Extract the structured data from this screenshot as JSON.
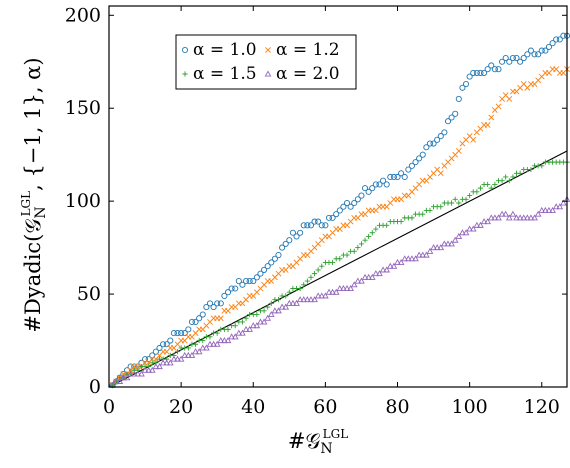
{
  "chart_data": {
    "type": "scatter",
    "xlabel": "#𝒢",
    "xlabel_sub": "N",
    "xlabel_sup": "LGL",
    "ylabel": "#Dyadic(𝒢",
    "ylabel_sub": "N",
    "ylabel_sup": "LGL",
    "ylabel_tail": ", {−1, 1}, α)",
    "xlim": [
      0,
      127
    ],
    "ylim": [
      0,
      205
    ],
    "xticks": [
      0,
      20,
      40,
      60,
      80,
      100,
      120
    ],
    "yticks": [
      0,
      50,
      100,
      150,
      200
    ],
    "x_tick_labels": [
      "0",
      "20",
      "40",
      "60",
      "80",
      "100",
      "120"
    ],
    "y_tick_labels": [
      "0",
      "50",
      "100",
      "150",
      "200"
    ],
    "legend_position": "top-left",
    "reference_line": {
      "x": [
        0,
        127
      ],
      "y": [
        0,
        127
      ]
    },
    "series": [
      {
        "name": "α = 1.0",
        "color": "#1f77b4",
        "marker": "circle",
        "x": [
          1,
          2,
          3,
          4,
          5,
          6,
          7,
          8,
          9,
          10,
          11,
          12,
          13,
          14,
          15,
          16,
          17,
          18,
          19,
          20,
          21,
          22,
          23,
          24,
          25,
          26,
          27,
          28,
          29,
          30,
          31,
          32,
          33,
          34,
          35,
          36,
          37,
          38,
          39,
          40,
          41,
          42,
          43,
          44,
          45,
          46,
          47,
          48,
          49,
          50,
          51,
          52,
          53,
          54,
          55,
          56,
          57,
          58,
          59,
          60,
          61,
          62,
          63,
          64,
          65,
          66,
          67,
          68,
          69,
          70,
          71,
          72,
          73,
          74,
          75,
          76,
          77,
          78,
          79,
          80,
          81,
          82,
          83,
          84,
          85,
          86,
          87,
          88,
          89,
          90,
          91,
          92,
          93,
          94,
          95,
          96,
          97,
          98,
          99,
          100,
          101,
          102,
          103,
          104,
          105,
          106,
          107,
          108,
          109,
          110,
          111,
          112,
          113,
          114,
          115,
          116,
          117,
          118,
          119,
          120,
          121,
          122,
          123,
          124,
          125,
          126,
          127
        ],
        "y": [
          1,
          3,
          5,
          7,
          9,
          11,
          11,
          11,
          13,
          15,
          15,
          17,
          19,
          21,
          23,
          23,
          25,
          29,
          29,
          29,
          29,
          31,
          35,
          35,
          37,
          39,
          43,
          45,
          43,
          45,
          45,
          49,
          51,
          53,
          53,
          57,
          55,
          57,
          57,
          57,
          59,
          61,
          63,
          65,
          67,
          69,
          71,
          75,
          77,
          79,
          83,
          81,
          83,
          87,
          87,
          87,
          89,
          89,
          87,
          87,
          91,
          91,
          93,
          95,
          97,
          99,
          97,
          99,
          101,
          103,
          107,
          105,
          107,
          109,
          109,
          111,
          109,
          113,
          113,
          113,
          115,
          113,
          117,
          119,
          121,
          123,
          125,
          129,
          131,
          131,
          133,
          135,
          137,
          143,
          145,
          147,
          155,
          161,
          163,
          167,
          169,
          169,
          169,
          169,
          171,
          173,
          171,
          171,
          175,
          177,
          175,
          177,
          177,
          175,
          177,
          179,
          181,
          179,
          179,
          181,
          181,
          183,
          185,
          187,
          187,
          189,
          189
        ]
      },
      {
        "name": "α = 1.2",
        "color": "#ff7f0e",
        "marker": "x",
        "x": [
          1,
          2,
          3,
          4,
          5,
          6,
          7,
          8,
          9,
          10,
          11,
          12,
          13,
          14,
          15,
          16,
          17,
          18,
          19,
          20,
          21,
          22,
          23,
          24,
          25,
          26,
          27,
          28,
          29,
          30,
          31,
          32,
          33,
          34,
          35,
          36,
          37,
          38,
          39,
          40,
          41,
          42,
          43,
          44,
          45,
          46,
          47,
          48,
          49,
          50,
          51,
          52,
          53,
          54,
          55,
          56,
          57,
          58,
          59,
          60,
          61,
          62,
          63,
          64,
          65,
          66,
          67,
          68,
          69,
          70,
          71,
          72,
          73,
          74,
          75,
          76,
          77,
          78,
          79,
          80,
          81,
          82,
          83,
          84,
          85,
          86,
          87,
          88,
          89,
          90,
          91,
          92,
          93,
          94,
          95,
          96,
          97,
          98,
          99,
          100,
          101,
          102,
          103,
          104,
          105,
          106,
          107,
          108,
          109,
          110,
          111,
          112,
          113,
          114,
          115,
          116,
          117,
          118,
          119,
          120,
          121,
          122,
          123,
          124,
          125,
          126,
          127
        ],
        "y": [
          1,
          3,
          5,
          7,
          7,
          9,
          11,
          11,
          11,
          13,
          13,
          15,
          15,
          17,
          19,
          19,
          21,
          21,
          23,
          25,
          25,
          27,
          27,
          29,
          31,
          31,
          33,
          35,
          37,
          37,
          37,
          41,
          41,
          43,
          43,
          45,
          45,
          47,
          49,
          49,
          51,
          53,
          55,
          57,
          57,
          59,
          61,
          63,
          63,
          65,
          65,
          67,
          69,
          71,
          71,
          73,
          75,
          77,
          79,
          81,
          81,
          83,
          85,
          85,
          87,
          87,
          89,
          91,
          91,
          93,
          93,
          95,
          95,
          95,
          97,
          97,
          97,
          99,
          101,
          101,
          101,
          103,
          103,
          105,
          107,
          109,
          111,
          111,
          113,
          115,
          117,
          115,
          119,
          121,
          123,
          125,
          127,
          131,
          133,
          135,
          133,
          137,
          139,
          141,
          141,
          145,
          149,
          151,
          155,
          157,
          155,
          159,
          159,
          161,
          163,
          161,
          163,
          163,
          165,
          167,
          169,
          169,
          171,
          171,
          169,
          169,
          171
        ]
      },
      {
        "name": "α = 1.5",
        "color": "#2ca02c",
        "marker": "plus",
        "x": [
          1,
          2,
          3,
          4,
          5,
          6,
          7,
          8,
          9,
          10,
          11,
          12,
          13,
          14,
          15,
          16,
          17,
          18,
          19,
          20,
          21,
          22,
          23,
          24,
          25,
          26,
          27,
          28,
          29,
          30,
          31,
          32,
          33,
          34,
          35,
          36,
          37,
          38,
          39,
          40,
          41,
          42,
          43,
          44,
          45,
          46,
          47,
          48,
          49,
          50,
          51,
          52,
          53,
          54,
          55,
          56,
          57,
          58,
          59,
          60,
          61,
          62,
          63,
          64,
          65,
          66,
          67,
          68,
          69,
          70,
          71,
          72,
          73,
          74,
          75,
          76,
          77,
          78,
          79,
          80,
          81,
          82,
          83,
          84,
          85,
          86,
          87,
          88,
          89,
          90,
          91,
          92,
          93,
          94,
          95,
          96,
          97,
          98,
          99,
          100,
          101,
          102,
          103,
          104,
          105,
          106,
          107,
          108,
          109,
          110,
          111,
          112,
          113,
          114,
          115,
          116,
          117,
          118,
          119,
          120,
          121,
          122,
          123,
          124,
          125,
          126,
          127
        ],
        "y": [
          1,
          3,
          5,
          5,
          7,
          7,
          9,
          9,
          11,
          11,
          11,
          13,
          13,
          15,
          15,
          15,
          17,
          17,
          19,
          21,
          21,
          21,
          23,
          23,
          25,
          25,
          27,
          27,
          29,
          29,
          31,
          31,
          31,
          33,
          33,
          35,
          35,
          37,
          39,
          39,
          39,
          41,
          41,
          43,
          45,
          47,
          47,
          49,
          49,
          51,
          53,
          53,
          53,
          55,
          57,
          59,
          61,
          63,
          65,
          67,
          67,
          67,
          69,
          69,
          71,
          71,
          73,
          73,
          75,
          77,
          79,
          81,
          83,
          85,
          87,
          87,
          87,
          89,
          89,
          89,
          89,
          91,
          91,
          91,
          93,
          93,
          93,
          95,
          95,
          97,
          97,
          97,
          99,
          99,
          99,
          101,
          99,
          101,
          101,
          103,
          105,
          105,
          107,
          109,
          109,
          107,
          109,
          111,
          111,
          113,
          111,
          113,
          115,
          115,
          117,
          117,
          117,
          119,
          119,
          119,
          121,
          121,
          121,
          121,
          121,
          121,
          121
        ]
      },
      {
        "name": "α = 2.0",
        "color": "#9467bd",
        "marker": "triangle",
        "x": [
          1,
          2,
          3,
          4,
          5,
          6,
          7,
          8,
          9,
          10,
          11,
          12,
          13,
          14,
          15,
          16,
          17,
          18,
          19,
          20,
          21,
          22,
          23,
          24,
          25,
          26,
          27,
          28,
          29,
          30,
          31,
          32,
          33,
          34,
          35,
          36,
          37,
          38,
          39,
          40,
          41,
          42,
          43,
          44,
          45,
          46,
          47,
          48,
          49,
          50,
          51,
          52,
          53,
          54,
          55,
          56,
          57,
          58,
          59,
          60,
          61,
          62,
          63,
          64,
          65,
          66,
          67,
          68,
          69,
          70,
          71,
          72,
          73,
          74,
          75,
          76,
          77,
          78,
          79,
          80,
          81,
          82,
          83,
          84,
          85,
          86,
          87,
          88,
          89,
          90,
          91,
          92,
          93,
          94,
          95,
          96,
          97,
          98,
          99,
          100,
          101,
          102,
          103,
          104,
          105,
          106,
          107,
          108,
          109,
          110,
          111,
          112,
          113,
          114,
          115,
          116,
          117,
          118,
          119,
          120,
          121,
          122,
          123,
          124,
          125,
          126,
          127
        ],
        "y": [
          1,
          3,
          3,
          5,
          5,
          7,
          7,
          7,
          7,
          9,
          9,
          9,
          11,
          11,
          13,
          13,
          13,
          15,
          15,
          15,
          17,
          17,
          17,
          19,
          19,
          21,
          21,
          23,
          23,
          23,
          25,
          25,
          25,
          27,
          27,
          29,
          29,
          31,
          31,
          33,
          33,
          35,
          35,
          37,
          39,
          41,
          41,
          43,
          43,
          45,
          45,
          45,
          47,
          47,
          47,
          47,
          47,
          49,
          49,
          49,
          51,
          51,
          51,
          53,
          53,
          53,
          53,
          55,
          57,
          57,
          59,
          59,
          59,
          61,
          61,
          63,
          63,
          65,
          65,
          67,
          67,
          69,
          69,
          69,
          69,
          71,
          71,
          71,
          73,
          75,
          75,
          75,
          77,
          77,
          77,
          79,
          81,
          83,
          83,
          85,
          85,
          87,
          87,
          89,
          89,
          91,
          91,
          91,
          93,
          93,
          91,
          93,
          91,
          91,
          91,
          91,
          91,
          91,
          93,
          95,
          95,
          95,
          95,
          97,
          97,
          99,
          101
        ]
      }
    ]
  }
}
